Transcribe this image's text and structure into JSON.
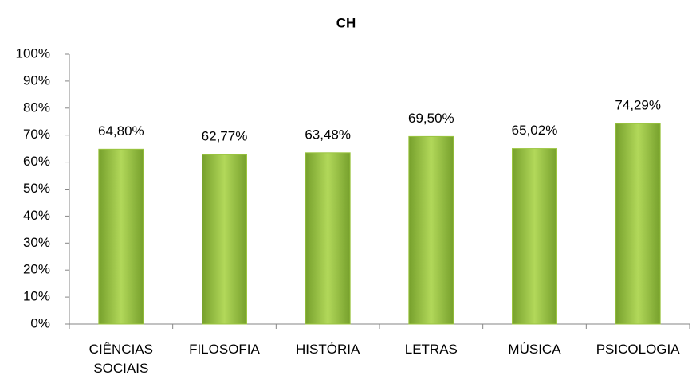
{
  "chart_data": {
    "type": "bar",
    "title": "CH",
    "categories": [
      "CIÊNCIAS SOCIAIS",
      "FILOSOFIA",
      "HISTÓRIA",
      "LETRAS",
      "MÚSICA",
      "PSICOLOGIA"
    ],
    "values": [
      64.8,
      62.77,
      63.48,
      69.5,
      65.02,
      74.29
    ],
    "value_labels": [
      "64,80%",
      "62,77%",
      "63,48%",
      "69,50%",
      "65,02%",
      "74,29%"
    ],
    "color": "#9bc540",
    "ylim": [
      0,
      100
    ],
    "yticks": [
      {
        "value": 0,
        "label": "0%"
      },
      {
        "value": 10,
        "label": "10%"
      },
      {
        "value": 20,
        "label": "20%"
      },
      {
        "value": 30,
        "label": "30%"
      },
      {
        "value": 40,
        "label": "40%"
      },
      {
        "value": 50,
        "label": "50%"
      },
      {
        "value": 60,
        "label": "60%"
      },
      {
        "value": 70,
        "label": "70%"
      },
      {
        "value": 80,
        "label": "80%"
      },
      {
        "value": 90,
        "label": "90%"
      },
      {
        "value": 100,
        "label": "100%"
      }
    ],
    "grid": false
  }
}
